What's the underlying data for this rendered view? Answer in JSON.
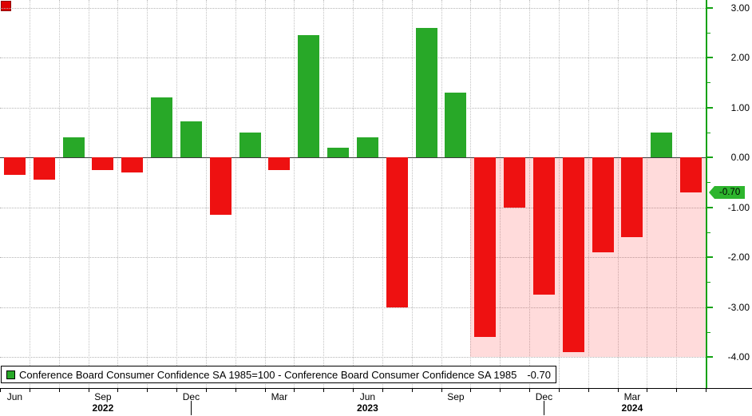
{
  "chart_data": {
    "type": "bar",
    "title": "",
    "legend_label": "Conference Board Consumer Confidence SA 1985=100 - Conference Board Consumer Confidence SA 1985",
    "legend_value": "-0.70",
    "last_value_label": "-0.70",
    "categories": [
      "Jun 2022",
      "Jul 2022",
      "Aug 2022",
      "Sep 2022",
      "Oct 2022",
      "Nov 2022",
      "Dec 2022",
      "Jan 2023",
      "Feb 2023",
      "Mar 2023",
      "Apr 2023",
      "May 2023",
      "Jun 2023",
      "Jul 2023",
      "Aug 2023",
      "Sep 2023",
      "Oct 2023",
      "Nov 2023",
      "Dec 2023",
      "Jan 2024",
      "Feb 2024",
      "Mar 2024",
      "Apr 2024",
      "May 2024"
    ],
    "values": [
      -0.35,
      -0.45,
      0.4,
      -0.25,
      -0.3,
      1.2,
      0.72,
      -1.15,
      0.5,
      -0.25,
      2.45,
      0.2,
      0.4,
      -3.0,
      2.6,
      1.3,
      -3.6,
      -1.0,
      -2.75,
      -3.9,
      -1.9,
      -1.6,
      0.5,
      -0.7
    ],
    "ylim": [
      -4.0,
      3.0
    ],
    "y_tick_labels": [
      "3.00",
      "2.00",
      "1.00",
      "0.00",
      "-1.00",
      "-2.00",
      "-3.00",
      "-4.00"
    ],
    "x_tick_months": [
      {
        "index": 0,
        "label": "Jun"
      },
      {
        "index": 3,
        "label": "Sep"
      },
      {
        "index": 6,
        "label": "Dec"
      },
      {
        "index": 9,
        "label": "Mar"
      },
      {
        "index": 12,
        "label": "Jun"
      },
      {
        "index": 15,
        "label": "Sep"
      },
      {
        "index": 18,
        "label": "Dec"
      },
      {
        "index": 21,
        "label": "Mar"
      }
    ],
    "years": [
      {
        "index": 3,
        "label": "2022"
      },
      {
        "index": 12,
        "label": "2023"
      },
      {
        "index": 21,
        "label": "2024"
      }
    ],
    "year_separator_indices": [
      6,
      18
    ],
    "positive_color": "#28a828",
    "negative_color": "#ee1111",
    "axis_color": "#12a212",
    "badge_bg": "#2db52d",
    "highlight": {
      "start_index": 16,
      "fill": "rgba(255,0,0,0.14)"
    },
    "grid": true,
    "legend_position": "bottom-left",
    "y_axis_side": "right"
  }
}
